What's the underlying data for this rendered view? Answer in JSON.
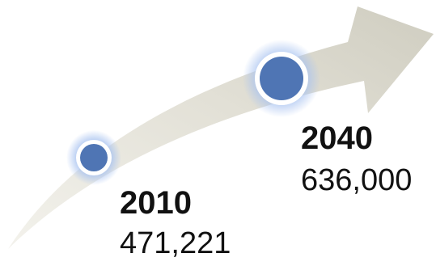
{
  "colors": {
    "arrow_light": "#f3f2ec",
    "arrow_dark": "#cfcdc0",
    "marker_fill": "#4f75b4",
    "marker_ring": "#ffffff",
    "marker_glow": "#a9c3f0",
    "text": "#111111"
  },
  "milestones": [
    {
      "year": "2010",
      "value": "471,221"
    },
    {
      "year": "2040",
      "value": "636,000"
    }
  ]
}
